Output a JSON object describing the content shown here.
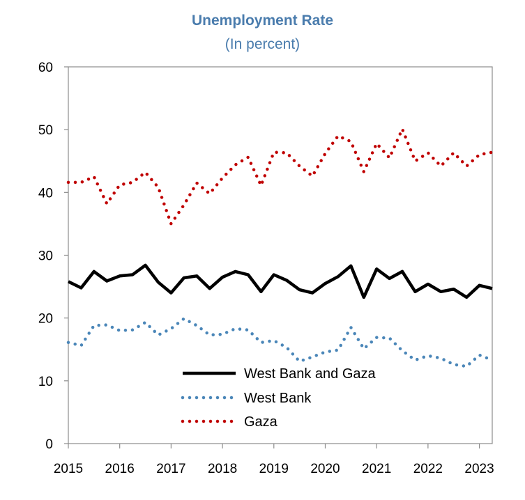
{
  "chart_data": {
    "type": "line",
    "title": "Unemployment Rate",
    "subtitle": "(In percent)",
    "xlabel": "",
    "ylabel": "",
    "xlim": [
      2015,
      2023.25
    ],
    "ylim": [
      0,
      60
    ],
    "x_ticks": [
      2015,
      2016,
      2017,
      2018,
      2019,
      2020,
      2021,
      2022,
      2023
    ],
    "y_ticks": [
      0,
      10,
      20,
      30,
      40,
      50,
      60
    ],
    "grid": false,
    "legend_position": "bottom-center",
    "x": [
      2015.0,
      2015.25,
      2015.5,
      2015.75,
      2016.0,
      2016.25,
      2016.5,
      2016.75,
      2017.0,
      2017.25,
      2017.5,
      2017.75,
      2018.0,
      2018.25,
      2018.5,
      2018.75,
      2019.0,
      2019.25,
      2019.5,
      2019.75,
      2020.0,
      2020.25,
      2020.5,
      2020.75,
      2021.0,
      2021.25,
      2021.5,
      2021.75,
      2022.0,
      2022.25,
      2022.5,
      2022.75,
      2023.0,
      2023.25
    ],
    "series": [
      {
        "name": "West Bank and Gaza",
        "color": "#000000",
        "style": "solid",
        "values": [
          25.8,
          24.8,
          27.4,
          25.9,
          26.7,
          26.9,
          28.4,
          25.7,
          24.0,
          26.4,
          26.7,
          24.7,
          26.5,
          27.4,
          26.9,
          24.2,
          26.9,
          26.0,
          24.5,
          24.0,
          25.5,
          26.6,
          28.3,
          23.3,
          27.8,
          26.3,
          27.4,
          24.2,
          25.4,
          24.2,
          24.6,
          23.3,
          25.2,
          24.7
        ]
      },
      {
        "name": "West Bank",
        "color": "#4a86b8",
        "style": "dotted",
        "values": [
          16.1,
          15.6,
          18.8,
          18.9,
          18.0,
          18.1,
          19.3,
          17.3,
          18.3,
          19.9,
          18.8,
          17.3,
          17.4,
          18.3,
          18.1,
          16.1,
          16.4,
          15.3,
          13.1,
          13.8,
          14.6,
          14.9,
          18.5,
          15.1,
          16.9,
          16.8,
          14.8,
          13.3,
          14.0,
          13.6,
          12.6,
          12.3,
          14.1,
          13.3
        ]
      },
      {
        "name": "Gaza",
        "color": "#c00000",
        "style": "dotted",
        "values": [
          41.6,
          41.6,
          42.5,
          38.2,
          41.2,
          41.6,
          43.2,
          40.8,
          35.0,
          38.0,
          41.5,
          39.8,
          42.3,
          44.4,
          45.6,
          41.1,
          46.4,
          46.3,
          44.2,
          42.6,
          46.2,
          49.0,
          48.1,
          43.3,
          47.8,
          45.5,
          50.1,
          45.0,
          46.3,
          44.2,
          46.3,
          44.2,
          46.0,
          46.4
        ]
      }
    ]
  }
}
